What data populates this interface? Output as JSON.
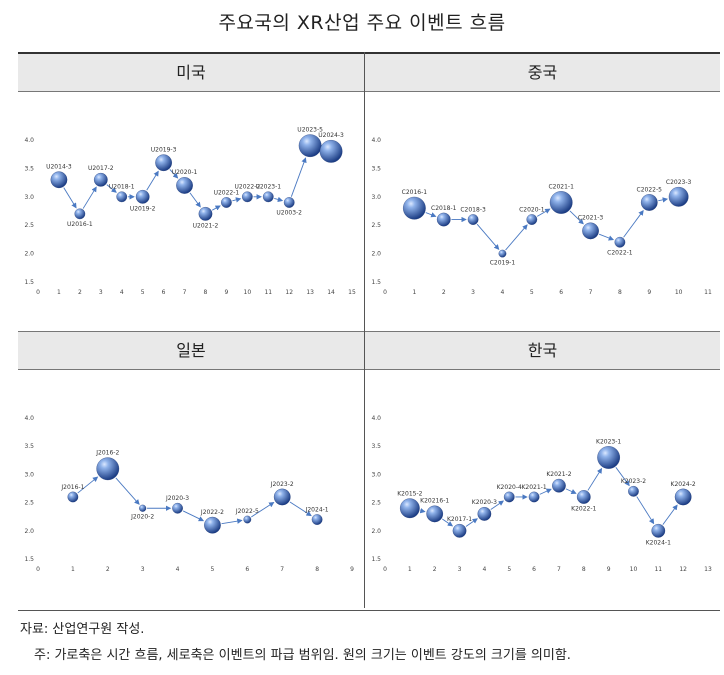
{
  "title": "주요국의 XR산업 주요 이벤트 흐름",
  "panels": [
    {
      "name": "미국"
    },
    {
      "name": "중국"
    },
    {
      "name": "일본"
    },
    {
      "name": "한국"
    }
  ],
  "chart_data": [
    {
      "type": "scatter",
      "panel": "미국",
      "xlim": [
        0,
        15
      ],
      "ylim": [
        1.5,
        4.0
      ],
      "xticks": [
        0,
        1,
        2,
        3,
        4,
        5,
        6,
        7,
        8,
        9,
        10,
        11,
        12,
        13,
        14,
        15
      ],
      "yticks": [
        "1.5",
        "2.0",
        "2.5",
        "3.0",
        "3.5",
        "4.0"
      ],
      "points": [
        {
          "label": "U2014-3",
          "x": 1,
          "y": 3.3,
          "size": 2,
          "pos": "above"
        },
        {
          "label": "U2016-1",
          "x": 2,
          "y": 2.7,
          "size": 1,
          "pos": "below"
        },
        {
          "label": "U2017-2",
          "x": 3,
          "y": 3.3,
          "size": 1.5,
          "pos": "above"
        },
        {
          "label": "U2018-1",
          "x": 4,
          "y": 3.0,
          "size": 1,
          "pos": "above"
        },
        {
          "label": "U2019-2",
          "x": 5,
          "y": 3.0,
          "size": 1.5,
          "pos": "below"
        },
        {
          "label": "U2019-3",
          "x": 6,
          "y": 3.6,
          "size": 2,
          "pos": "above"
        },
        {
          "label": "U2020-1",
          "x": 7,
          "y": 3.2,
          "size": 2,
          "pos": "above"
        },
        {
          "label": "U2021-2",
          "x": 8,
          "y": 2.7,
          "size": 1.5,
          "pos": "below"
        },
        {
          "label": "U2022-1",
          "x": 9,
          "y": 2.9,
          "size": 1,
          "pos": "above"
        },
        {
          "label": "U2022-2",
          "x": 10,
          "y": 3.0,
          "size": 1,
          "pos": "above"
        },
        {
          "label": "U2023-1",
          "x": 11,
          "y": 3.0,
          "size": 1,
          "pos": "above"
        },
        {
          "label": "U2003-2",
          "x": 12,
          "y": 2.9,
          "size": 1,
          "pos": "below"
        },
        {
          "label": "U2023-5",
          "x": 13,
          "y": 3.9,
          "size": 3,
          "pos": "above"
        },
        {
          "label": "U2024-3",
          "x": 14,
          "y": 3.8,
          "size": 3,
          "pos": "above"
        }
      ]
    },
    {
      "type": "scatter",
      "panel": "중국",
      "xlim": [
        0,
        11
      ],
      "ylim": [
        1.5,
        4.0
      ],
      "xticks": [
        0,
        1,
        2,
        3,
        4,
        5,
        6,
        7,
        8,
        9,
        10,
        11
      ],
      "yticks": [
        "1.5",
        "2.0",
        "2.5",
        "3.0",
        "3.5",
        "4.0"
      ],
      "points": [
        {
          "label": "C2016-1",
          "x": 1,
          "y": 2.8,
          "size": 3,
          "pos": "above"
        },
        {
          "label": "C2018-1",
          "x": 2,
          "y": 2.6,
          "size": 1.5,
          "pos": "above"
        },
        {
          "label": "C2018-3",
          "x": 3,
          "y": 2.6,
          "size": 1,
          "pos": "above"
        },
        {
          "label": "C2019-1",
          "x": 4,
          "y": 2.0,
          "size": 0.5,
          "pos": "below"
        },
        {
          "label": "C2020-1",
          "x": 5,
          "y": 2.6,
          "size": 1,
          "pos": "above"
        },
        {
          "label": "C2021-1",
          "x": 6,
          "y": 2.9,
          "size": 3,
          "pos": "above"
        },
        {
          "label": "C2021-3",
          "x": 7,
          "y": 2.4,
          "size": 2,
          "pos": "above"
        },
        {
          "label": "C2022-1",
          "x": 8,
          "y": 2.2,
          "size": 1,
          "pos": "below"
        },
        {
          "label": "C2022-5",
          "x": 9,
          "y": 2.9,
          "size": 2,
          "pos": "above"
        },
        {
          "label": "C2023-3",
          "x": 10,
          "y": 3.0,
          "size": 2.5,
          "pos": "above"
        }
      ]
    },
    {
      "type": "scatter",
      "panel": "일본",
      "xlim": [
        0,
        9
      ],
      "ylim": [
        1.5,
        4.0
      ],
      "xticks": [
        0,
        1,
        2,
        3,
        4,
        5,
        6,
        7,
        8,
        9
      ],
      "yticks": [
        "1.5",
        "2.0",
        "2.5",
        "3.0",
        "3.5",
        "4.0"
      ],
      "points": [
        {
          "label": "J2016-1",
          "x": 1,
          "y": 2.6,
          "size": 1,
          "pos": "above"
        },
        {
          "label": "J2016-2",
          "x": 2,
          "y": 3.1,
          "size": 3,
          "pos": "above"
        },
        {
          "label": "J2020-2",
          "x": 3,
          "y": 2.4,
          "size": 0.4,
          "pos": "below"
        },
        {
          "label": "J2020-3",
          "x": 4,
          "y": 2.4,
          "size": 1,
          "pos": "above"
        },
        {
          "label": "J2022-2",
          "x": 5,
          "y": 2.1,
          "size": 2,
          "pos": "above"
        },
        {
          "label": "J2022-5",
          "x": 6,
          "y": 2.2,
          "size": 0.5,
          "pos": "above"
        },
        {
          "label": "J2023-2",
          "x": 7,
          "y": 2.6,
          "size": 2,
          "pos": "above"
        },
        {
          "label": "J2024-1",
          "x": 8,
          "y": 2.2,
          "size": 1,
          "pos": "above"
        }
      ]
    },
    {
      "type": "scatter",
      "panel": "한국",
      "xlim": [
        0,
        13
      ],
      "ylim": [
        1.5,
        4.0
      ],
      "xticks": [
        0,
        1,
        2,
        3,
        4,
        5,
        6,
        7,
        8,
        9,
        10,
        11,
        12,
        13
      ],
      "yticks": [
        "1.5",
        "2.0",
        "2.5",
        "3.0",
        "3.5",
        "4.0"
      ],
      "points": [
        {
          "label": "K2015-2",
          "x": 1,
          "y": 2.4,
          "size": 2.5,
          "pos": "above"
        },
        {
          "label": "K20216-1",
          "x": 2,
          "y": 2.3,
          "size": 2,
          "pos": "above"
        },
        {
          "label": "K2017-1",
          "x": 3,
          "y": 2.0,
          "size": 1.5,
          "pos": "above"
        },
        {
          "label": "K2020-3",
          "x": 4,
          "y": 2.3,
          "size": 1.5,
          "pos": "above"
        },
        {
          "label": "K2020-4",
          "x": 5,
          "y": 2.6,
          "size": 1,
          "pos": "above"
        },
        {
          "label": "K2021-1",
          "x": 6,
          "y": 2.6,
          "size": 1,
          "pos": "above"
        },
        {
          "label": "K2021-2",
          "x": 7,
          "y": 2.8,
          "size": 1.5,
          "pos": "above"
        },
        {
          "label": "K2022-1",
          "x": 8,
          "y": 2.6,
          "size": 1.5,
          "pos": "below"
        },
        {
          "label": "K2023-1",
          "x": 9,
          "y": 3.3,
          "size": 3,
          "pos": "above"
        },
        {
          "label": "K2023-2",
          "x": 10,
          "y": 2.7,
          "size": 1,
          "pos": "above"
        },
        {
          "label": "K2024-1",
          "x": 11,
          "y": 2.0,
          "size": 1.5,
          "pos": "below"
        },
        {
          "label": "K2024-2",
          "x": 12,
          "y": 2.6,
          "size": 2,
          "pos": "above"
        }
      ]
    }
  ],
  "notes": {
    "source": "자료: 산업연구원 작성.",
    "note": "주: 가로축은 시간 흐름, 세로축은 이벤트의 파급 범위임. 원의 크기는 이벤트 강도의 크기를 의미함."
  },
  "colors": {
    "bubble_light": "#8fb2ea",
    "bubble_dark": "#1c3d84",
    "arrow": "#4a79c2",
    "header_bg": "#e9e9e9"
  }
}
